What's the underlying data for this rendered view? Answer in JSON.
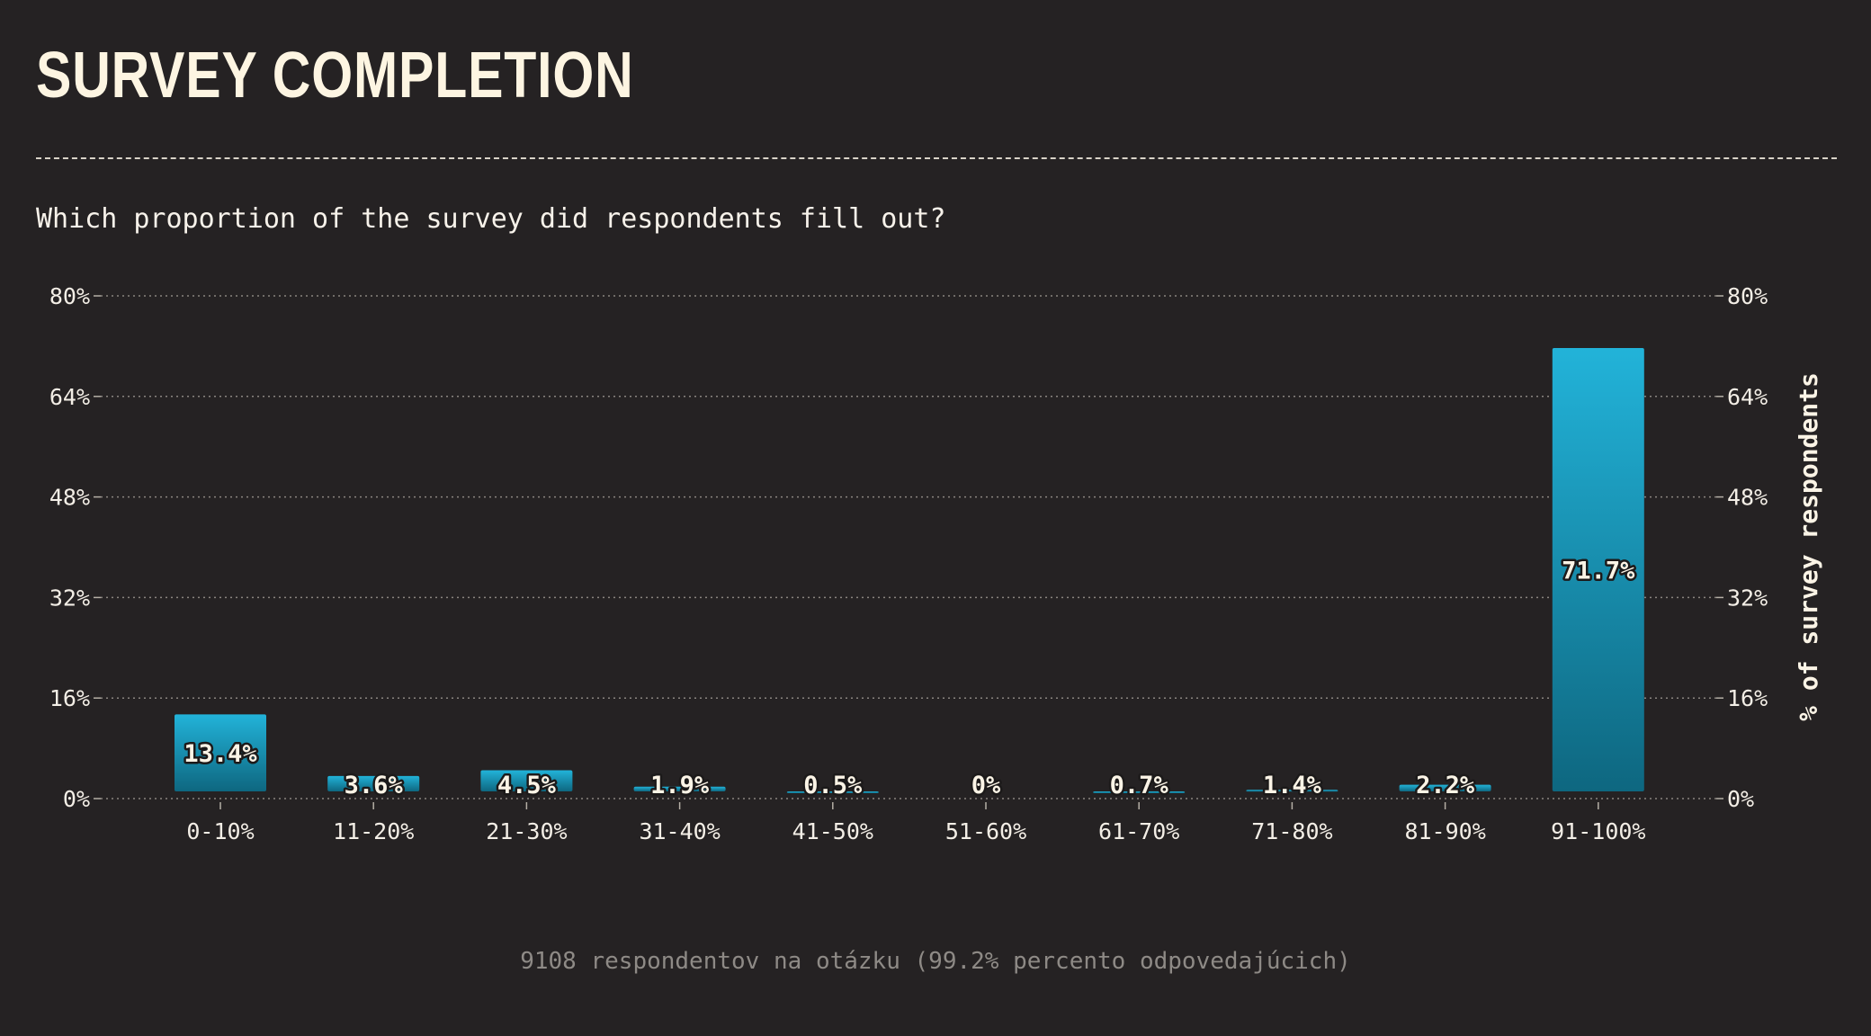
{
  "header": {
    "title": "SURVEY COMPLETION"
  },
  "subtitle": "Which proportion of the survey did respondents fill out?",
  "footer": "9108 respondentov na otázku (99.2% percento odpovedajúcich)",
  "colors": {
    "background": "#252223",
    "bar_top": "#22b3d9",
    "bar_bottom": "#0e6780",
    "text": "#fbf4e6"
  },
  "chart_data": {
    "type": "bar",
    "categories": [
      "0-10%",
      "11-20%",
      "21-30%",
      "31-40%",
      "41-50%",
      "51-60%",
      "61-70%",
      "71-80%",
      "81-90%",
      "91-100%"
    ],
    "values": [
      13.4,
      3.6,
      4.5,
      1.9,
      0.5,
      0,
      0.7,
      1.4,
      2.2,
      71.7
    ],
    "value_labels": [
      "13.4%",
      "3.6%",
      "4.5%",
      "1.9%",
      "0.5%",
      "0%",
      "0.7%",
      "1.4%",
      "2.2%",
      "71.7%"
    ],
    "yticks": [
      0,
      16,
      32,
      48,
      64,
      80
    ],
    "ytick_labels": [
      "0%",
      "16%",
      "32%",
      "48%",
      "64%",
      "80%"
    ],
    "ylim": [
      0,
      80
    ],
    "ylabel": "% of survey respondents",
    "xlabel": "",
    "grid": true
  }
}
